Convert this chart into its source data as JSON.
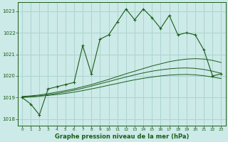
{
  "xlabel": "Graphe pression niveau de la mer (hPa)",
  "bg_color": "#cceae7",
  "grid_color": "#aad4d0",
  "line_color": "#1a5c1a",
  "ylim": [
    1017.7,
    1023.4
  ],
  "xlim": [
    -0.5,
    23.5
  ],
  "yticks": [
    1018,
    1019,
    1020,
    1021,
    1022,
    1023
  ],
  "xticks": [
    0,
    1,
    2,
    3,
    4,
    5,
    6,
    7,
    8,
    9,
    10,
    11,
    12,
    13,
    14,
    15,
    16,
    17,
    18,
    19,
    20,
    21,
    22,
    23
  ],
  "series1": [
    1019.0,
    1018.7,
    1018.2,
    1019.4,
    1019.5,
    1019.6,
    1019.7,
    1021.4,
    1020.1,
    1021.7,
    1021.9,
    1022.5,
    1023.1,
    1022.6,
    1023.1,
    1022.7,
    1022.2,
    1022.8,
    1021.9,
    1022.0,
    1021.9,
    1021.2,
    1020.0,
    1020.1
  ],
  "series2": [
    1019.05,
    1019.08,
    1019.12,
    1019.18,
    1019.25,
    1019.32,
    1019.4,
    1019.5,
    1019.6,
    1019.72,
    1019.84,
    1019.97,
    1020.1,
    1020.22,
    1020.34,
    1020.46,
    1020.56,
    1020.66,
    1020.73,
    1020.78,
    1020.8,
    1020.78,
    1020.72,
    1020.62
  ],
  "series3": [
    1019.02,
    1019.05,
    1019.08,
    1019.13,
    1019.19,
    1019.26,
    1019.34,
    1019.43,
    1019.53,
    1019.64,
    1019.74,
    1019.85,
    1019.95,
    1020.05,
    1020.14,
    1020.22,
    1020.28,
    1020.33,
    1020.36,
    1020.37,
    1020.35,
    1020.3,
    1020.22,
    1020.12
  ],
  "series4": [
    1019.01,
    1019.03,
    1019.06,
    1019.1,
    1019.14,
    1019.19,
    1019.25,
    1019.32,
    1019.4,
    1019.48,
    1019.57,
    1019.65,
    1019.74,
    1019.82,
    1019.89,
    1019.95,
    1020.0,
    1020.04,
    1020.06,
    1020.07,
    1020.05,
    1020.01,
    1019.95,
    1019.88
  ]
}
